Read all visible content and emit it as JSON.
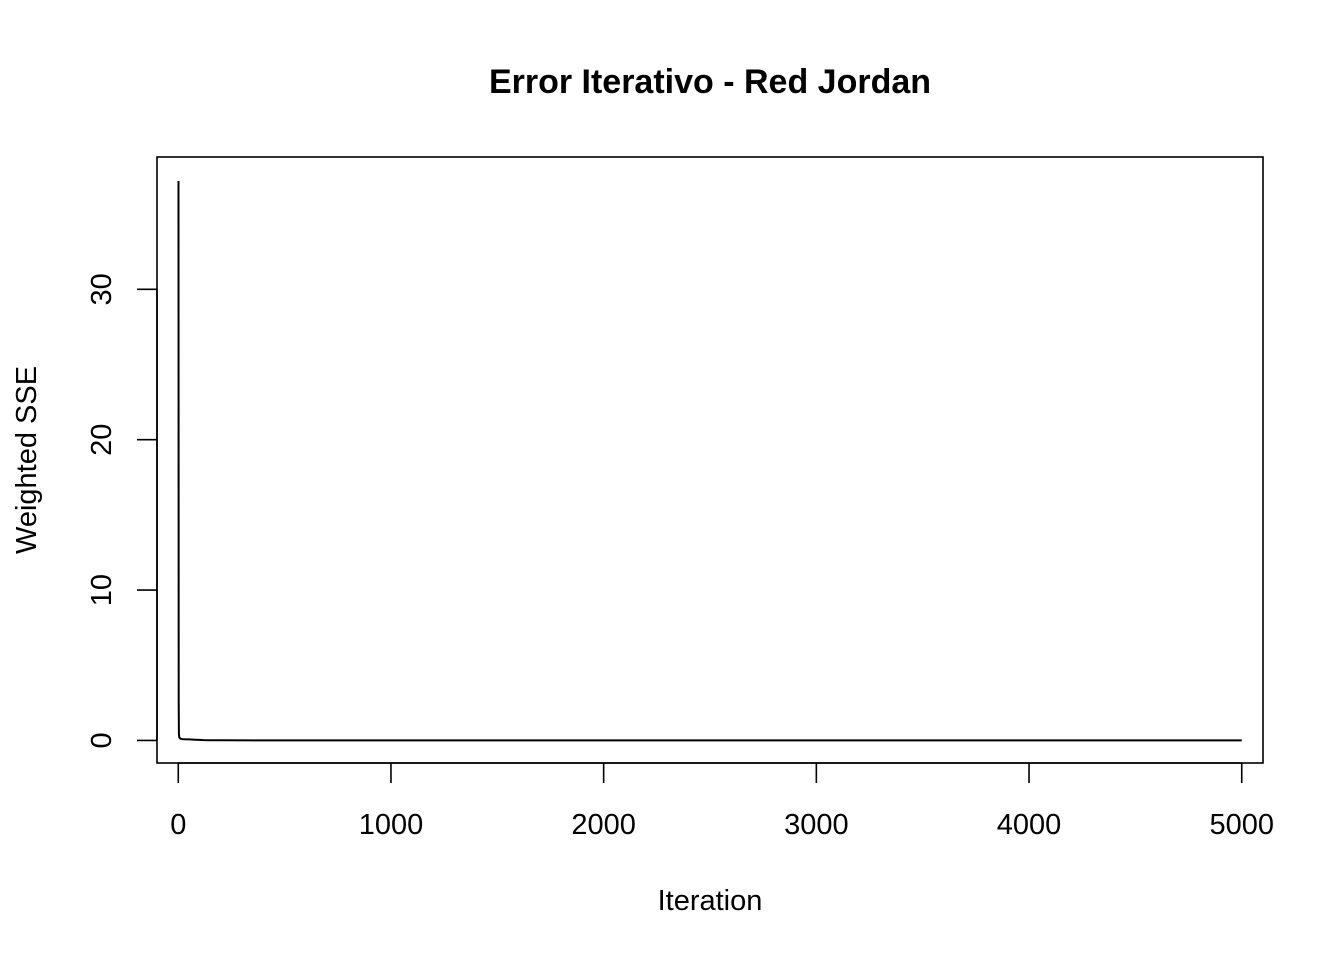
{
  "chart_data": {
    "type": "line",
    "title": "Error Iterativo - Red Jordan",
    "xlabel": "Iteration",
    "ylabel": "Weighted SSE",
    "xlim": [
      -100,
      5100
    ],
    "ylim": [
      -1.5,
      38.8
    ],
    "x_ticks": [
      0,
      1000,
      2000,
      3000,
      4000,
      5000
    ],
    "x_tick_labels": [
      "0",
      "1000",
      "2000",
      "3000",
      "4000",
      "5000"
    ],
    "y_ticks": [
      0,
      10,
      20,
      30
    ],
    "y_tick_labels": [
      "0",
      "10",
      "20",
      "30"
    ],
    "grid": false,
    "legend": "none",
    "line_color": "#000000",
    "series": [
      {
        "x": [
          1,
          2,
          3,
          5,
          8,
          10,
          15,
          20,
          30,
          50,
          80,
          100,
          120,
          150,
          200,
          500,
          1000,
          2000,
          3000,
          4000,
          5000
        ],
        "y": [
          37.2,
          2.6,
          0.4,
          0.2,
          0.15,
          0.12,
          0.1,
          0.09,
          0.08,
          0.07,
          0.05,
          0.04,
          0.02,
          0.01,
          0.01,
          0.005,
          0.003,
          0.002,
          0.001,
          0.001,
          0.001
        ]
      }
    ]
  }
}
